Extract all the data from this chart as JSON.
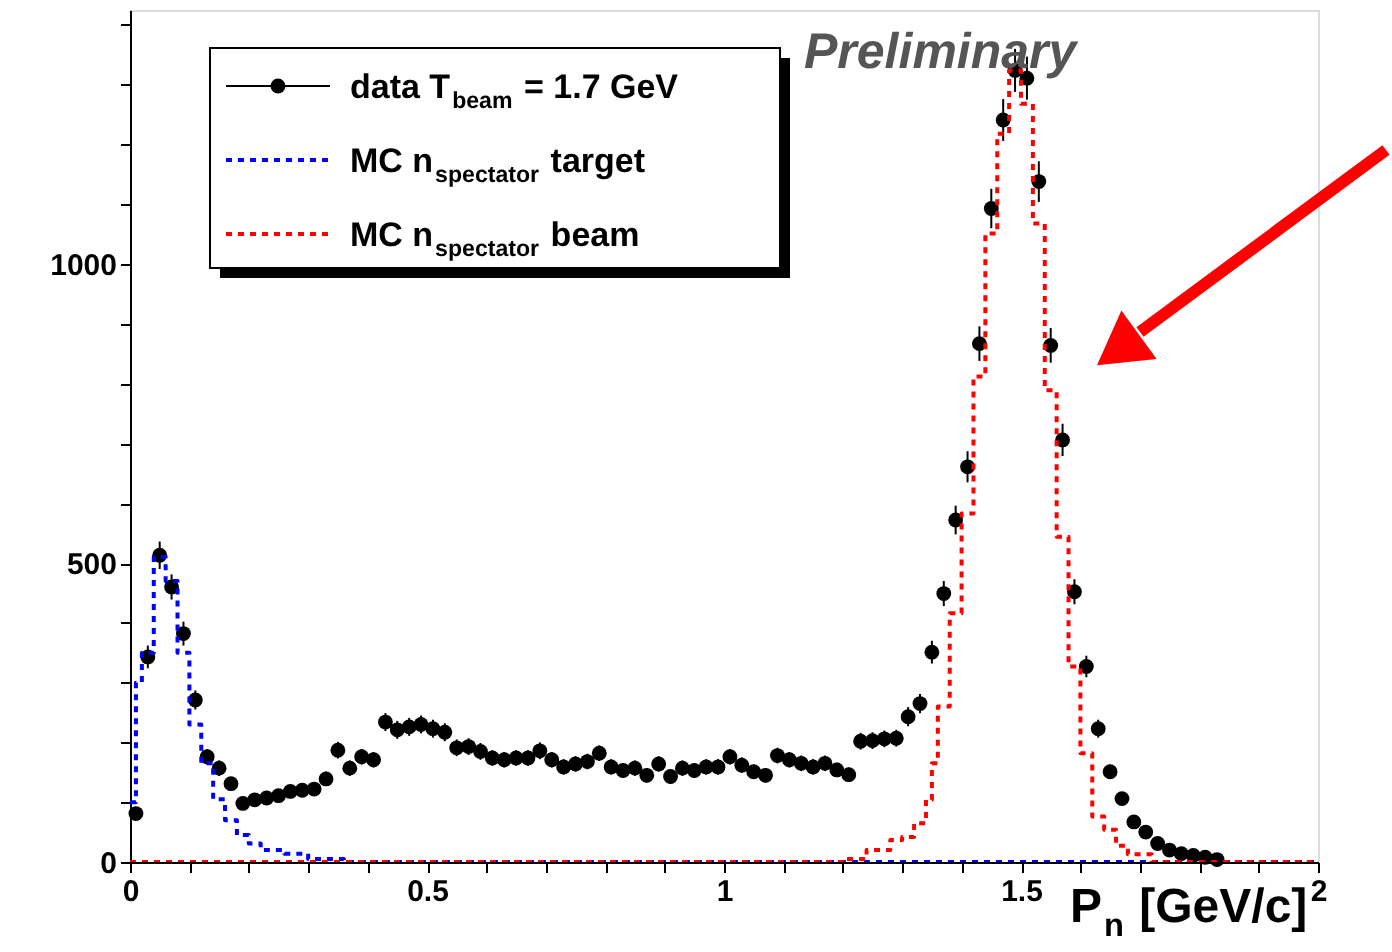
{
  "chart_data": {
    "type": "scatter",
    "xlabel": "P$_{n}$ [GeV/c]",
    "annotations": [
      "Preliminary"
    ],
    "xlim": [
      0,
      2
    ],
    "ylim": [
      0,
      1425
    ],
    "xticks": [
      0,
      {
        "value": 0.1,
        "label": null
      },
      {
        "value": 0.2,
        "label": null
      },
      {
        "value": 0.3,
        "label": null
      },
      {
        "value": 0.4,
        "label": null
      },
      0.5,
      {
        "value": 0.6,
        "label": null
      },
      {
        "value": 0.7,
        "label": null
      },
      {
        "value": 0.8,
        "label": null
      },
      {
        "value": 0.9,
        "label": null
      },
      1,
      {
        "value": 1.1,
        "label": null
      },
      {
        "value": 1.2,
        "label": null
      },
      {
        "value": 1.3,
        "label": null
      },
      {
        "value": 1.4,
        "label": null
      },
      1.5,
      {
        "value": 1.6,
        "label": null
      },
      {
        "value": 1.7,
        "label": null
      },
      {
        "value": 1.8,
        "label": null
      },
      {
        "value": 1.9,
        "label": null
      },
      2
    ],
    "yticks": [
      0,
      {
        "value": 100,
        "label": null
      },
      {
        "value": 200,
        "label": null
      },
      {
        "value": 300,
        "label": null
      },
      {
        "value": 400,
        "label": null
      },
      500,
      {
        "value": 600,
        "label": null
      },
      {
        "value": 700,
        "label": null
      },
      {
        "value": 800,
        "label": null
      },
      {
        "value": 900,
        "label": null
      },
      1000,
      {
        "value": 1100,
        "label": null
      },
      {
        "value": 1200,
        "label": null
      },
      {
        "value": 1300,
        "label": null
      },
      {
        "value": 1400,
        "label": null
      }
    ],
    "grid": false,
    "legend": "top left",
    "series": [
      {
        "name": "data T$_{beam}$ = 1.7 GeV",
        "color": "#000000",
        "marker": "circle",
        "x": [
          0.01,
          0.03,
          0.05,
          0.07,
          0.09,
          0.11,
          0.13,
          0.15,
          0.17,
          0.19,
          0.21,
          0.23,
          0.25,
          0.27,
          0.29,
          0.31,
          0.33,
          0.35,
          0.37,
          0.39,
          0.41,
          0.43,
          0.45,
          0.47,
          0.49,
          0.51,
          0.53,
          0.55,
          0.57,
          0.59,
          0.61,
          0.63,
          0.65,
          0.67,
          0.69,
          0.71,
          0.73,
          0.75,
          0.77,
          0.79,
          0.81,
          0.83,
          0.85,
          0.87,
          0.89,
          0.91,
          0.93,
          0.95,
          0.97,
          0.99,
          1.01,
          1.03,
          1.05,
          1.07,
          1.09,
          1.11,
          1.13,
          1.15,
          1.17,
          1.19,
          1.21,
          1.23,
          1.25,
          1.27,
          1.29,
          1.31,
          1.33,
          1.35,
          1.37,
          1.39,
          1.41,
          1.43,
          1.45,
          1.47,
          1.49,
          1.51,
          1.53,
          1.55,
          1.57,
          1.59,
          1.61,
          1.63,
          1.65,
          1.67,
          1.69,
          1.71,
          1.73,
          1.75,
          1.77,
          1.79,
          1.81,
          1.83
        ],
        "values": [
          81,
          343,
          513,
          460,
          382,
          271,
          176,
          157,
          131,
          98,
          104,
          107,
          111,
          118,
          120,
          122,
          139,
          187,
          157,
          176,
          171,
          234,
          221,
          226,
          230,
          223,
          217,
          191,
          193,
          185,
          174,
          171,
          174,
          174,
          186,
          171,
          159,
          164,
          168,
          182,
          159,
          153,
          157,
          145,
          164,
          143,
          157,
          153,
          159,
          159,
          176,
          162,
          151,
          145,
          178,
          171,
          165,
          159,
          165,
          154,
          146,
          202,
          203,
          206,
          207,
          243,
          265,
          351,
          449,
          572,
          661,
          867,
          1093,
          1241,
          1324,
          1311,
          1138,
          864,
          706,
          452,
          327,
          223,
          151,
          106,
          67,
          50,
          31,
          20,
          14,
          11,
          8,
          4
        ],
        "errors": [
          9,
          19,
          23,
          21,
          20,
          16,
          13,
          13,
          11,
          10,
          10,
          10,
          11,
          11,
          11,
          11,
          12,
          14,
          13,
          13,
          13,
          15,
          15,
          15,
          15,
          15,
          15,
          14,
          14,
          14,
          13,
          13,
          13,
          13,
          14,
          13,
          13,
          13,
          13,
          13,
          13,
          12,
          13,
          12,
          13,
          12,
          13,
          12,
          13,
          13,
          13,
          13,
          12,
          12,
          13,
          13,
          13,
          13,
          13,
          12,
          12,
          14,
          14,
          14,
          14,
          16,
          16,
          19,
          21,
          24,
          26,
          29,
          33,
          35,
          36,
          36,
          34,
          29,
          27,
          21,
          18,
          15,
          12,
          10,
          8,
          7,
          6,
          4,
          4,
          3,
          3,
          2
        ]
      },
      {
        "name": "MC n$_{spectator}$ target",
        "type": "step",
        "color": "#0000ff",
        "line_style": "dotted",
        "x": [
          0,
          0.01,
          0.02,
          0.04,
          0.06,
          0.08,
          0.1,
          0.12,
          0.14,
          0.16,
          0.18,
          0.2,
          0.22,
          0.26,
          0.3,
          0.36,
          2.0
        ],
        "values": [
          100,
          300,
          350,
          510,
          470,
          350,
          230,
          165,
          105,
          70,
          45,
          31,
          20,
          14,
          5,
          0,
          0
        ]
      },
      {
        "name": "MC n$_{spectator}$ beam",
        "type": "step",
        "color": "#ff0000",
        "line_style": "dotted",
        "x": [
          0,
          1.2,
          1.24,
          1.28,
          1.3,
          1.32,
          1.34,
          1.35,
          1.36,
          1.38,
          1.4,
          1.42,
          1.44,
          1.46,
          1.48,
          1.5,
          1.52,
          1.54,
          1.56,
          1.58,
          1.6,
          1.62,
          1.64,
          1.66,
          1.68,
          1.72,
          2.0
        ],
        "values": [
          0,
          5,
          20,
          37,
          42,
          65,
          104,
          165,
          260,
          416,
          583,
          812,
          1051,
          1218,
          1324,
          1268,
          1068,
          789,
          544,
          327,
          182,
          76,
          54,
          27,
          13,
          0,
          0
        ]
      }
    ]
  }
}
